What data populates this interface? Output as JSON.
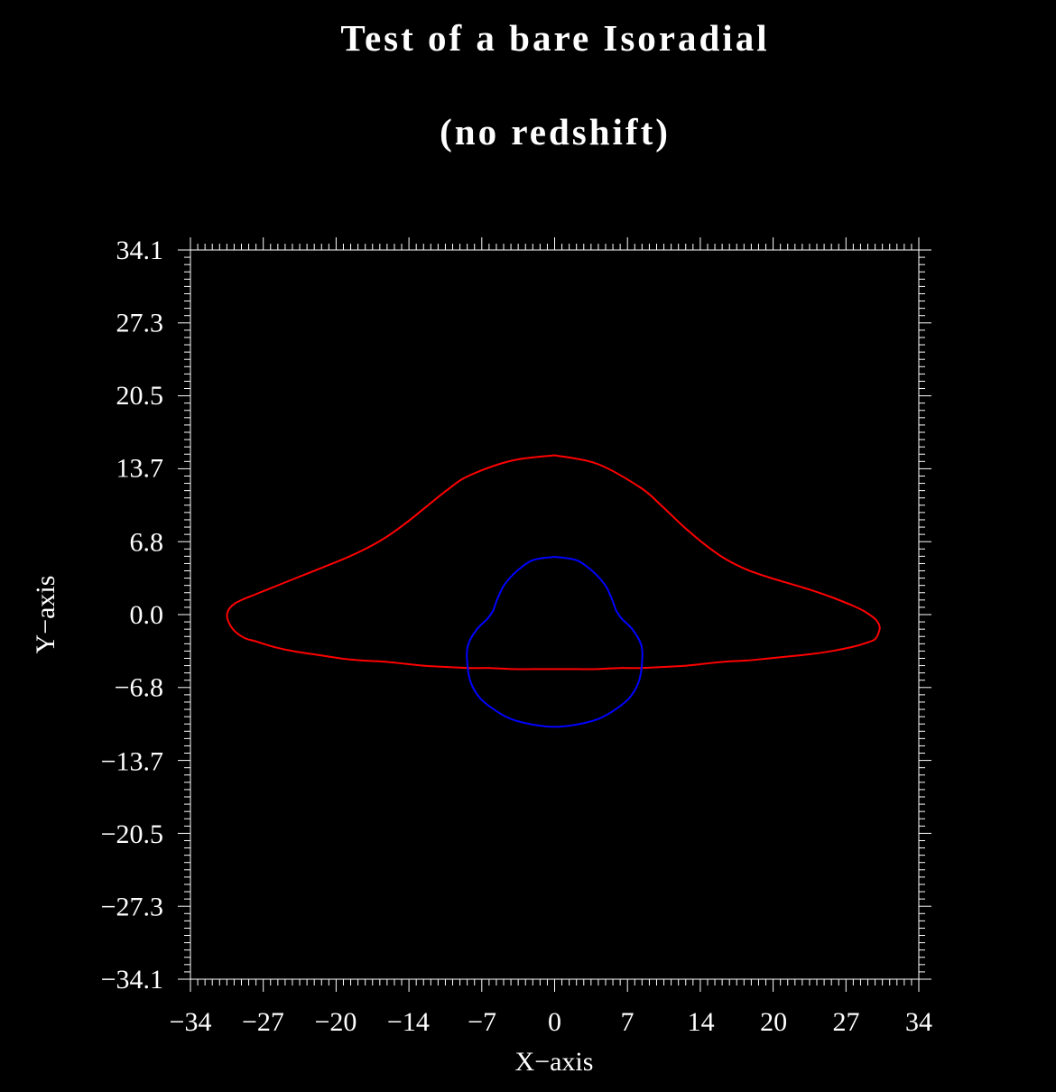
{
  "chart_data": {
    "type": "line",
    "title": "Test of a bare Isoradial",
    "subtitle": "(no redshift)",
    "xlabel": "X−axis",
    "ylabel": "Y−axis",
    "xlim": [
      -34.1,
      34.1
    ],
    "ylim": [
      -34.1,
      34.1
    ],
    "x_ticks": [
      "−34",
      "−27",
      "−20",
      "−14",
      "−7",
      "0",
      "7",
      "14",
      "20",
      "27",
      "34"
    ],
    "x_tick_values": [
      -34.1,
      -27.3,
      -20.5,
      -13.7,
      -6.8,
      0,
      6.8,
      13.7,
      20.5,
      27.3,
      34.1
    ],
    "y_ticks": [
      "34.1",
      "27.3",
      "20.5",
      "13.7",
      "6.8",
      "0.0",
      "−6.8",
      "−13.7",
      "−20.5",
      "−27.3",
      "−34.1"
    ],
    "y_tick_values": [
      34.1,
      27.3,
      20.5,
      13.7,
      6.8,
      0,
      -6.8,
      -13.7,
      -20.5,
      -27.3,
      -34.1
    ],
    "grid": false,
    "series": [
      {
        "color": "#ff0000",
        "x": [
          0,
          4,
          8,
          10,
          12,
          14,
          16,
          18,
          20,
          22,
          24,
          26,
          28,
          29,
          30,
          30.4,
          30.4,
          30,
          29,
          28,
          26,
          24,
          22,
          20,
          18,
          16,
          14,
          12,
          10,
          8,
          6,
          4,
          2,
          0,
          -2,
          -4,
          -6,
          -8,
          -10,
          -12,
          -14,
          -16,
          -18,
          -20,
          -22,
          -24,
          -26,
          -28,
          -29,
          -30,
          -30.6,
          -30.6,
          -30,
          -29,
          -28,
          -26,
          -24,
          -22,
          -20,
          -18,
          -16,
          -14,
          -12,
          -10,
          -8,
          -4,
          0
        ],
        "y": [
          14.9,
          14.1,
          11.9,
          10.2,
          8.3,
          6.6,
          5.2,
          4.2,
          3.5,
          2.9,
          2.3,
          1.6,
          0.8,
          0.3,
          -0.4,
          -1.0,
          -1.5,
          -2.3,
          -2.7,
          -3.0,
          -3.4,
          -3.7,
          -3.9,
          -4.1,
          -4.3,
          -4.4,
          -4.6,
          -4.8,
          -4.9,
          -5.0,
          -5.0,
          -5.1,
          -5.1,
          -5.1,
          -5.1,
          -5.1,
          -5.0,
          -5.0,
          -4.9,
          -4.8,
          -4.6,
          -4.4,
          -4.3,
          -4.1,
          -3.8,
          -3.5,
          -3.1,
          -2.5,
          -2.2,
          -1.5,
          -0.5,
          0.3,
          1.0,
          1.5,
          1.9,
          2.7,
          3.5,
          4.3,
          5.1,
          6.0,
          7.1,
          8.5,
          10.1,
          11.7,
          13.0,
          14.4,
          14.9
        ]
      },
      {
        "color": "#0000ff",
        "x": [
          0,
          2,
          3.5,
          4.7,
          5.3,
          5.6,
          5.8,
          6.3,
          7.3,
          8.1,
          8.2,
          7.9,
          7.0,
          5.5,
          4.0,
          2.0,
          0,
          -2.0,
          -4.0,
          -5.5,
          -7.0,
          -7.9,
          -8.2,
          -8.1,
          -7.3,
          -6.3,
          -5.8,
          -5.6,
          -5.3,
          -4.7,
          -3.5,
          -2,
          0
        ],
        "y": [
          5.4,
          5.1,
          4.1,
          2.8,
          1.6,
          0.8,
          0.3,
          -0.4,
          -1.4,
          -2.8,
          -4.3,
          -6.2,
          -7.8,
          -9.0,
          -9.8,
          -10.3,
          -10.5,
          -10.3,
          -9.8,
          -9.0,
          -7.8,
          -6.2,
          -4.3,
          -2.8,
          -1.4,
          -0.4,
          0.3,
          0.8,
          1.6,
          2.8,
          4.1,
          5.1,
          5.4
        ]
      }
    ]
  }
}
